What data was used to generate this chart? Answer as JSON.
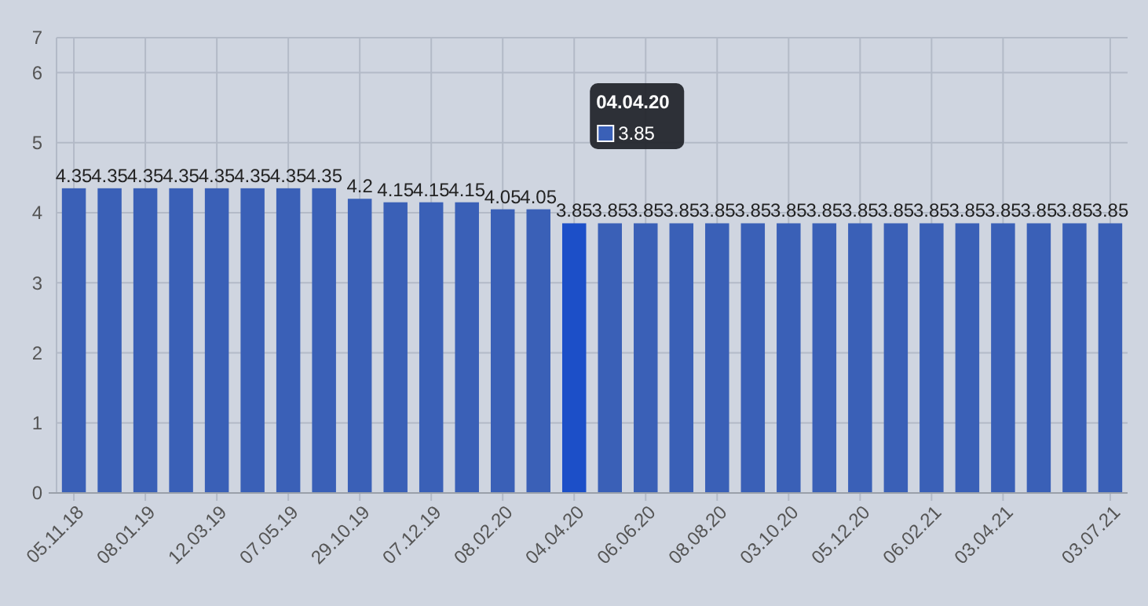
{
  "chart_data": {
    "type": "bar",
    "categories": [
      "05.11.18",
      null,
      "08.01.19",
      null,
      "12.03.19",
      null,
      "07.05.19",
      null,
      "29.10.19",
      null,
      "07.12.19",
      null,
      "08.02.20",
      null,
      "04.04.20",
      null,
      "06.06.20",
      null,
      "08.08.20",
      null,
      "03.10.20",
      null,
      "05.12.20",
      null,
      "06.02.21",
      null,
      "03.04.21",
      null,
      null,
      "03.07.21"
    ],
    "values": [
      4.35,
      4.35,
      4.35,
      4.35,
      4.35,
      4.35,
      4.35,
      4.35,
      4.2,
      4.15,
      4.15,
      4.15,
      4.05,
      4.05,
      3.85,
      3.85,
      3.85,
      3.85,
      3.85,
      3.85,
      3.85,
      3.85,
      3.85,
      3.85,
      3.85,
      3.85,
      3.85,
      3.85,
      3.85,
      3.85
    ],
    "colors": [
      "#3a60b7",
      "#3a60b7",
      "#3a60b7",
      "#3a60b7",
      "#3a60b7",
      "#3a60b7",
      "#3a60b7",
      "#3a60b7",
      "#3a60b7",
      "#3a60b7",
      "#3a60b7",
      "#3a60b7",
      "#3a60b7",
      "#3a60b7",
      "#1c4fc8",
      "#3a60b7",
      "#3a60b7",
      "#3a60b7",
      "#3a60b7",
      "#3a60b7",
      "#3a60b7",
      "#3a60b7",
      "#3a60b7",
      "#3a60b7",
      "#3a60b7",
      "#3a60b7",
      "#3a60b7",
      "#3a60b7",
      "#3a60b7",
      "#3a60b7"
    ],
    "ylim": [
      0,
      6.5
    ],
    "yticks": [
      0,
      1,
      2,
      3,
      4,
      5,
      6,
      {
        "value": 6.5,
        "label": "7"
      }
    ],
    "grid": true,
    "data_labels": true,
    "annotations": [
      "04.04.20",
      "3.85"
    ]
  }
}
